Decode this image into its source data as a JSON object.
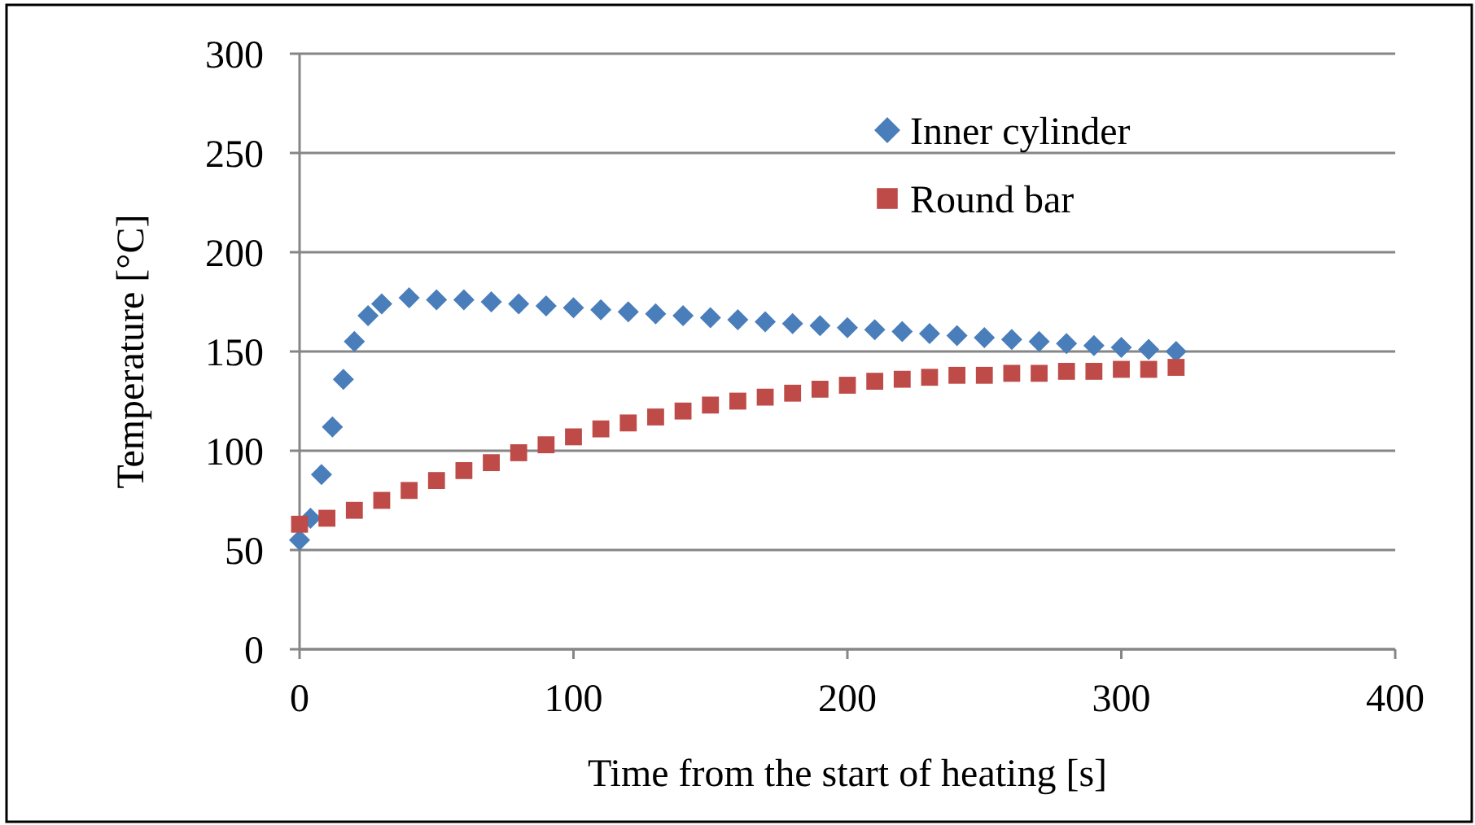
{
  "chart_data": {
    "type": "scatter",
    "xlabel": "Time from the start of heating [s]",
    "ylabel": "Temperature [°C]",
    "series": [
      {
        "name": "Inner cylinder",
        "color": "#4a7ebb",
        "marker": "diamond",
        "x": [
          0,
          4,
          8,
          12,
          16,
          20,
          25,
          30,
          40,
          50,
          60,
          70,
          80,
          90,
          100,
          110,
          120,
          130,
          140,
          150,
          160,
          170,
          180,
          190,
          200,
          210,
          220,
          230,
          240,
          250,
          260,
          270,
          280,
          290,
          300,
          310,
          320
        ],
        "values": [
          55,
          66,
          88,
          112,
          136,
          155,
          168,
          174,
          177,
          176,
          176,
          175,
          174,
          173,
          172,
          171,
          170,
          169,
          168,
          167,
          166,
          165,
          164,
          163,
          162,
          161,
          160,
          159,
          158,
          157,
          156,
          155,
          154,
          153,
          152,
          151,
          150
        ]
      },
      {
        "name": "Round bar",
        "color": "#be4b48",
        "marker": "square",
        "x": [
          0,
          10,
          20,
          30,
          40,
          50,
          60,
          70,
          80,
          90,
          100,
          110,
          120,
          130,
          140,
          150,
          160,
          170,
          180,
          190,
          200,
          210,
          220,
          230,
          240,
          250,
          260,
          270,
          280,
          290,
          300,
          310,
          320
        ],
        "values": [
          63,
          66,
          70,
          75,
          80,
          85,
          90,
          94,
          99,
          103,
          107,
          111,
          114,
          117,
          120,
          123,
          125,
          127,
          129,
          131,
          133,
          135,
          136,
          137,
          138,
          138,
          139,
          139,
          140,
          140,
          141,
          141,
          142
        ]
      }
    ],
    "xlim": [
      0,
      400
    ],
    "xticks": [
      0,
      100,
      200,
      300,
      400
    ],
    "ylim": [
      0,
      300
    ],
    "yticks": [
      0,
      50,
      100,
      150,
      200,
      250,
      300
    ],
    "grid": "y",
    "legend": "top right"
  }
}
